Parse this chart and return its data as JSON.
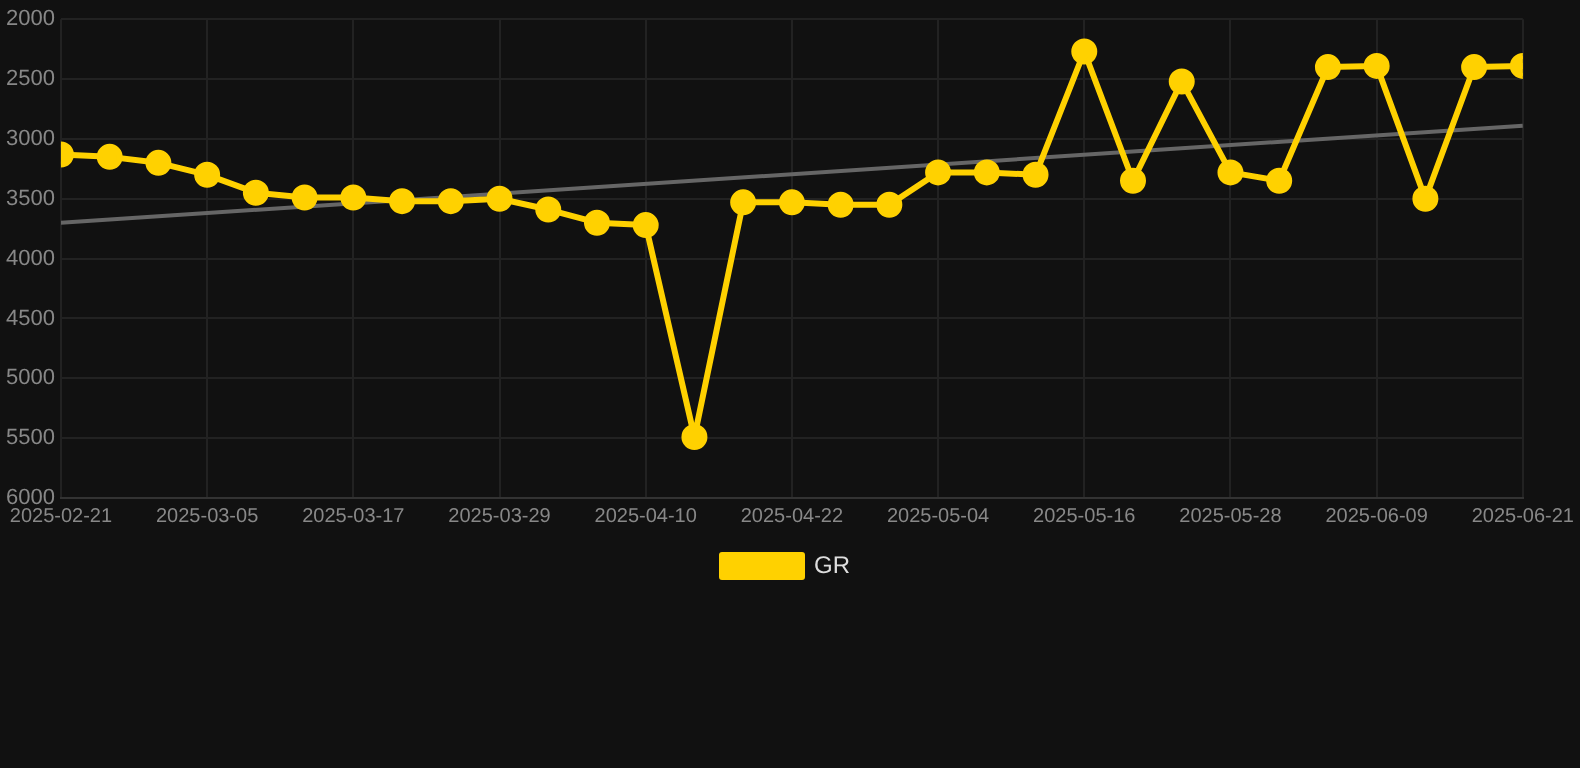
{
  "chart_data": {
    "type": "line",
    "x": [
      "2025-02-21",
      "2025-02-25",
      "2025-03-01",
      "2025-03-05",
      "2025-03-09",
      "2025-03-13",
      "2025-03-17",
      "2025-03-21",
      "2025-03-25",
      "2025-03-29",
      "2025-04-02",
      "2025-04-06",
      "2025-04-10",
      "2025-04-14",
      "2025-04-18",
      "2025-04-22",
      "2025-04-26",
      "2025-04-30",
      "2025-05-04",
      "2025-05-08",
      "2025-05-12",
      "2025-05-16",
      "2025-05-20",
      "2025-05-24",
      "2025-05-28",
      "2025-06-01",
      "2025-06-05",
      "2025-06-09",
      "2025-06-13",
      "2025-06-17",
      "2025-06-21"
    ],
    "series": [
      {
        "name": "GR",
        "color": "#ffd100",
        "values": [
          3130,
          3150,
          3200,
          3300,
          3450,
          3490,
          3490,
          3520,
          3520,
          3500,
          3590,
          3700,
          3720,
          5490,
          3530,
          3530,
          3550,
          3550,
          3280,
          3280,
          3300,
          2270,
          3350,
          2520,
          3280,
          3350,
          2400,
          2390,
          3500,
          2400,
          2390
        ]
      },
      {
        "type": "line",
        "color": "#666666",
        "marker": "none",
        "x": [
          "2025-02-21",
          "2025-06-21"
        ],
        "values": [
          3700,
          2890
        ]
      }
    ],
    "xlim": [
      "2025-02-21",
      "2025-06-21"
    ],
    "xticks": [
      "2025-02-21",
      "2025-03-05",
      "2025-03-17",
      "2025-03-29",
      "2025-04-10",
      "2025-04-22",
      "2025-05-04",
      "2025-05-16",
      "2025-05-28",
      "2025-06-09",
      "2025-06-21"
    ],
    "ylim": [
      6000,
      2000
    ],
    "yticks": [
      2000,
      2500,
      3000,
      3500,
      4000,
      4500,
      5000,
      5500,
      6000
    ],
    "grid": true,
    "legend": "bottom",
    "marker": "circle",
    "line_style": "solid"
  }
}
